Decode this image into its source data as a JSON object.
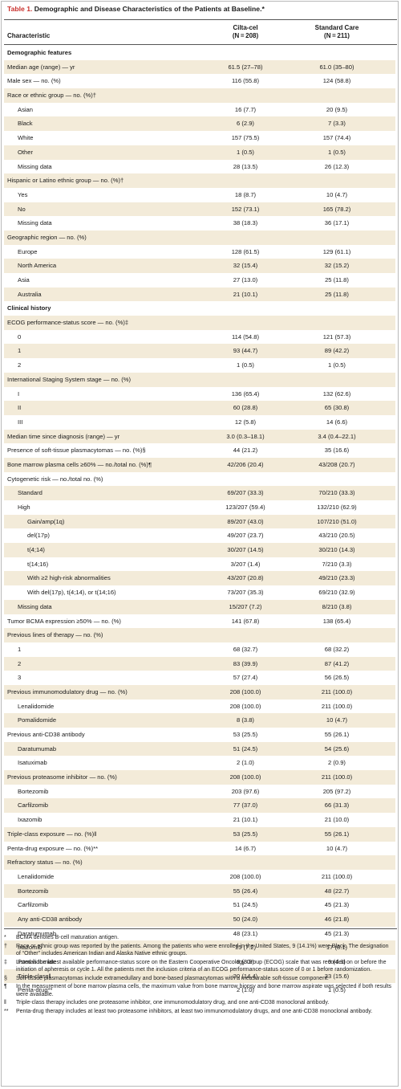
{
  "table": {
    "number": "Table 1.",
    "title": "Demographic and Disease Characteristics of the Patients at Baseline.*",
    "col_characteristic": "Characteristic",
    "col1_name": "Cilta-cel",
    "col1_n": "(N = 208)",
    "col2_name": "Standard Care",
    "col2_n": "(N = 211)",
    "rows": [
      {
        "label": "Demographic features",
        "level": 0,
        "section": true,
        "v1": "",
        "v2": ""
      },
      {
        "label": "Median age (range) — yr",
        "level": 0,
        "v1": "61.5 (27–78)",
        "v2": "61.0 (35–80)"
      },
      {
        "label": "Male sex — no. (%)",
        "level": 0,
        "v1": "116 (55.8)",
        "v2": "124 (58.8)"
      },
      {
        "label": "Race or ethnic group — no. (%)†",
        "level": 0,
        "v1": "",
        "v2": ""
      },
      {
        "label": "Asian",
        "level": 1,
        "v1": "16 (7.7)",
        "v2": "20 (9.5)"
      },
      {
        "label": "Black",
        "level": 1,
        "v1": "6 (2.9)",
        "v2": "7 (3.3)"
      },
      {
        "label": "White",
        "level": 1,
        "v1": "157 (75.5)",
        "v2": "157 (74.4)"
      },
      {
        "label": "Other",
        "level": 1,
        "v1": "1 (0.5)",
        "v2": "1 (0.5)"
      },
      {
        "label": "Missing data",
        "level": 1,
        "v1": "28 (13.5)",
        "v2": "26 (12.3)"
      },
      {
        "label": "Hispanic or Latino ethnic group — no. (%)†",
        "level": 0,
        "v1": "",
        "v2": ""
      },
      {
        "label": "Yes",
        "level": 1,
        "v1": "18 (8.7)",
        "v2": "10 (4.7)"
      },
      {
        "label": "No",
        "level": 1,
        "v1": "152 (73.1)",
        "v2": "165 (78.2)"
      },
      {
        "label": "Missing data",
        "level": 1,
        "v1": "38 (18.3)",
        "v2": "36 (17.1)"
      },
      {
        "label": "Geographic region — no. (%)",
        "level": 0,
        "v1": "",
        "v2": ""
      },
      {
        "label": "Europe",
        "level": 1,
        "v1": "128 (61.5)",
        "v2": "129 (61.1)"
      },
      {
        "label": "North America",
        "level": 1,
        "v1": "32 (15.4)",
        "v2": "32 (15.2)"
      },
      {
        "label": "Asia",
        "level": 1,
        "v1": "27 (13.0)",
        "v2": "25 (11.8)"
      },
      {
        "label": "Australia",
        "level": 1,
        "v1": "21 (10.1)",
        "v2": "25 (11.8)"
      },
      {
        "label": "Clinical history",
        "level": 0,
        "section": true,
        "v1": "",
        "v2": ""
      },
      {
        "label": "ECOG performance-status score — no. (%)‡",
        "level": 0,
        "v1": "",
        "v2": ""
      },
      {
        "label": "0",
        "level": 1,
        "v1": "114 (54.8)",
        "v2": "121 (57.3)"
      },
      {
        "label": "1",
        "level": 1,
        "v1": "93 (44.7)",
        "v2": "89 (42.2)"
      },
      {
        "label": "2",
        "level": 1,
        "v1": "1 (0.5)",
        "v2": "1 (0.5)"
      },
      {
        "label": "International Staging System stage — no. (%)",
        "level": 0,
        "v1": "",
        "v2": ""
      },
      {
        "label": "I",
        "level": 1,
        "v1": "136 (65.4)",
        "v2": "132 (62.6)"
      },
      {
        "label": "II",
        "level": 1,
        "v1": "60 (28.8)",
        "v2": "65 (30.8)"
      },
      {
        "label": "III",
        "level": 1,
        "v1": "12 (5.8)",
        "v2": "14 (6.6)"
      },
      {
        "label": "Median time since diagnosis (range) — yr",
        "level": 0,
        "v1": "3.0 (0.3–18.1)",
        "v2": "3.4 (0.4–22.1)"
      },
      {
        "label": "Presence of soft-tissue plasmacytomas — no. (%)§",
        "level": 0,
        "v1": "44 (21.2)",
        "v2": "35 (16.6)"
      },
      {
        "label": "Bone marrow plasma cells ≥60% — no./total no. (%)¶",
        "level": 0,
        "v1": "42/206 (20.4)",
        "v2": "43/208 (20.7)"
      },
      {
        "label": "Cytogenetic risk — no./total no. (%)",
        "level": 0,
        "v1": "",
        "v2": ""
      },
      {
        "label": "Standard",
        "level": 1,
        "v1": "69/207 (33.3)",
        "v2": "70/210 (33.3)"
      },
      {
        "label": "High",
        "level": 1,
        "v1": "123/207 (59.4)",
        "v2": "132/210 (62.9)"
      },
      {
        "label": "Gain/amp(1q)",
        "level": 2,
        "v1": "89/207 (43.0)",
        "v2": "107/210 (51.0)"
      },
      {
        "label": "del(17p)",
        "level": 2,
        "v1": "49/207 (23.7)",
        "v2": "43/210 (20.5)"
      },
      {
        "label": "t(4;14)",
        "level": 2,
        "v1": "30/207 (14.5)",
        "v2": "30/210 (14.3)"
      },
      {
        "label": "t(14;16)",
        "level": 2,
        "v1": "3/207 (1.4)",
        "v2": "7/210 (3.3)"
      },
      {
        "label": "With ≥2 high-risk abnormalities",
        "level": 2,
        "v1": "43/207 (20.8)",
        "v2": "49/210 (23.3)"
      },
      {
        "label": "With del(17p), t(4;14), or t(14;16)",
        "level": 2,
        "v1": "73/207 (35.3)",
        "v2": "69/210 (32.9)"
      },
      {
        "label": "Missing data",
        "level": 1,
        "v1": "15/207 (7.2)",
        "v2": "8/210 (3.8)"
      },
      {
        "label": "Tumor BCMA expression ≥50% — no. (%)",
        "level": 0,
        "v1": "141 (67.8)",
        "v2": "138 (65.4)"
      },
      {
        "label": "Previous lines of therapy — no. (%)",
        "level": 0,
        "v1": "",
        "v2": ""
      },
      {
        "label": "1",
        "level": 1,
        "v1": "68 (32.7)",
        "v2": "68 (32.2)"
      },
      {
        "label": "2",
        "level": 1,
        "v1": "83 (39.9)",
        "v2": "87 (41.2)"
      },
      {
        "label": "3",
        "level": 1,
        "v1": "57 (27.4)",
        "v2": "56 (26.5)"
      },
      {
        "label": "Previous immunomodulatory drug — no. (%)",
        "level": 0,
        "v1": "208 (100.0)",
        "v2": "211 (100.0)"
      },
      {
        "label": "Lenalidomide",
        "level": 1,
        "v1": "208 (100.0)",
        "v2": "211 (100.0)"
      },
      {
        "label": "Pomalidomide",
        "level": 1,
        "v1": "8 (3.8)",
        "v2": "10 (4.7)"
      },
      {
        "label": "Previous anti-CD38 antibody",
        "level": 0,
        "v1": "53 (25.5)",
        "v2": "55 (26.1)"
      },
      {
        "label": "Daratumumab",
        "level": 1,
        "v1": "51 (24.5)",
        "v2": "54 (25.6)"
      },
      {
        "label": "Isatuximab",
        "level": 1,
        "v1": "2 (1.0)",
        "v2": "2 (0.9)"
      },
      {
        "label": "Previous proteasome inhibitor — no. (%)",
        "level": 0,
        "v1": "208 (100.0)",
        "v2": "211 (100.0)"
      },
      {
        "label": "Bortezomib",
        "level": 1,
        "v1": "203 (97.6)",
        "v2": "205 (97.2)"
      },
      {
        "label": "Carfilzomib",
        "level": 1,
        "v1": "77 (37.0)",
        "v2": "66 (31.3)"
      },
      {
        "label": "Ixazomib",
        "level": 1,
        "v1": "21 (10.1)",
        "v2": "21 (10.0)"
      },
      {
        "label": "Triple-class exposure — no. (%)‖",
        "level": 0,
        "v1": "53 (25.5)",
        "v2": "55 (26.1)"
      },
      {
        "label": "Penta-drug exposure — no. (%)**",
        "level": 0,
        "v1": "14 (6.7)",
        "v2": "10 (4.7)"
      },
      {
        "label": "Refractory status — no. (%)",
        "level": 0,
        "v1": "",
        "v2": ""
      },
      {
        "label": "Lenalidomide",
        "level": 1,
        "v1": "208 (100.0)",
        "v2": "211 (100.0)"
      },
      {
        "label": "Bortezomib",
        "level": 1,
        "v1": "55 (26.4)",
        "v2": "48 (22.7)"
      },
      {
        "label": "Carfilzomib",
        "level": 1,
        "v1": "51 (24.5)",
        "v2": "45 (21.3)"
      },
      {
        "label": "Any anti-CD38 antibody",
        "level": 1,
        "v1": "50 (24.0)",
        "v2": "46 (21.8)"
      },
      {
        "label": "Daratumumab",
        "level": 1,
        "v1": "48 (23.1)",
        "v2": "45 (21.3)"
      },
      {
        "label": "Ixazomib",
        "level": 1,
        "v1": "15 (7.2)",
        "v2": "17 (8.1)"
      },
      {
        "label": "Pomalidomide",
        "level": 1,
        "v1": "8 (3.8)",
        "v2": "9 (4.3)"
      },
      {
        "label": "Triple-class‖",
        "level": 1,
        "v1": "30 (14.4)",
        "v2": "33 (15.6)"
      },
      {
        "label": "Penta-drug**",
        "level": 1,
        "v1": "2 (1.0)",
        "v2": "1 (0.5)"
      }
    ],
    "footnotes": [
      {
        "symbol": "*",
        "text": "BCMA denotes B-cell maturation antigen."
      },
      {
        "symbol": "†",
        "text": "Race or ethnic group was reported by the patients. Among the patients who were enrolled in the United States, 9 (14.1%) were Black. The designation of “Other” includes American Indian and Alaska Native ethnic groups."
      },
      {
        "symbol": "‡",
        "text": "Listed is the latest available performance-status score on the Eastern Cooperative Oncology Group (ECOG) scale that was recorded on or before the initiation of apheresis or cycle 1. All the patients met the inclusion criteria of an ECOG performance-status score of 0 or 1 before randomization."
      },
      {
        "symbol": "§",
        "text": "Soft-tissue plasmacytomas include extramedullary and bone-based plasmacytomas with a measurable soft-tissue component."
      },
      {
        "symbol": "¶",
        "text": "In the measurement of bone marrow plasma cells, the maximum value from bone marrow biopsy and bone marrow aspirate was selected if both results were available."
      },
      {
        "symbol": "‖",
        "text": "Triple-class therapy includes one proteasome inhibitor, one immunomodulatory drug, and one anti-CD38 monoclonal antibody."
      },
      {
        "symbol": "**",
        "text": "Penta-drug therapy includes at least two proteasome inhibitors, at least two immunomodulatory drugs, and one anti-CD38 monoclonal antibody."
      }
    ]
  }
}
